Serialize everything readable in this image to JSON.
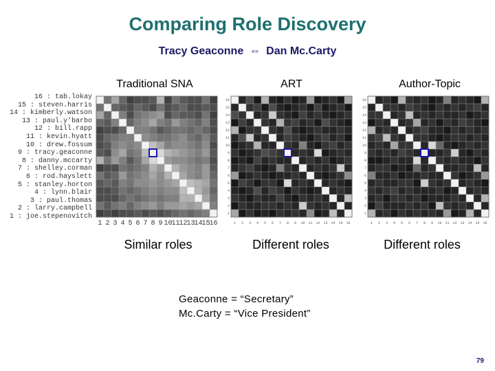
{
  "slide": {
    "title": "Comparing Role Discovery",
    "subtitle_left": "Tracy Geaconne",
    "subtitle_arrow": "⇔",
    "subtitle_right": "Dan Mc.Carty",
    "page_number": "79"
  },
  "panels": [
    {
      "label": "Traditional SNA",
      "caption": "Similar roles"
    },
    {
      "label": "ART",
      "caption": "Different roles"
    },
    {
      "label": "Author-Topic",
      "caption": "Different roles"
    }
  ],
  "names": [
    "16 : tab.lokay",
    "15 : steven.harris",
    "14 : kimberly.watson",
    "13 : paul.y'barbo",
    "12 : bill.rapp",
    "11 : kevin.hyatt",
    "10 : drew.fossum",
    "9 : tracy.geaconne",
    "8 : danny.mccarty",
    "7 : shelley.corman",
    "6 : rod.hayslett",
    "5 : stanley.horton",
    "4 : lynn.blair",
    "3 : paul.thomas",
    "2 : larry.campbell",
    "1 : joe.stepenovitch"
  ],
  "x_ticks": [
    "1",
    "2",
    "3",
    "4",
    "5",
    "6",
    "7",
    "8",
    "9",
    "10",
    "11",
    "12",
    "13",
    "14",
    "15",
    "16"
  ],
  "footnote": {
    "line1": "Geaconne = “Secretary”",
    "line2": "Mc.Carty = “Vice President”"
  },
  "colors": {
    "title": "#1f6f6f",
    "subtitle": "#1a1a66",
    "highlight_box": "#1a1aaa"
  },
  "matrices": {
    "sna": [
      [
        0.05,
        0.55,
        0.35,
        0.6,
        0.75,
        0.7,
        0.7,
        0.65,
        0.3,
        0.75,
        0.55,
        0.65,
        0.7,
        0.7,
        0.55,
        0.75
      ],
      [
        0.55,
        0.05,
        0.6,
        0.65,
        0.7,
        0.6,
        0.65,
        0.7,
        0.55,
        0.7,
        0.65,
        0.6,
        0.7,
        0.7,
        0.65,
        0.7
      ],
      [
        0.35,
        0.6,
        0.05,
        0.5,
        0.7,
        0.55,
        0.5,
        0.45,
        0.4,
        0.7,
        0.6,
        0.65,
        0.65,
        0.7,
        0.55,
        0.75
      ],
      [
        0.6,
        0.65,
        0.5,
        0.05,
        0.6,
        0.5,
        0.45,
        0.35,
        0.5,
        0.55,
        0.4,
        0.5,
        0.55,
        0.6,
        0.5,
        0.7
      ],
      [
        0.75,
        0.7,
        0.7,
        0.6,
        0.05,
        0.5,
        0.5,
        0.55,
        0.65,
        0.6,
        0.55,
        0.55,
        0.6,
        0.55,
        0.6,
        0.7
      ],
      [
        0.7,
        0.6,
        0.55,
        0.5,
        0.5,
        0.05,
        0.45,
        0.5,
        0.55,
        0.55,
        0.5,
        0.45,
        0.55,
        0.6,
        0.5,
        0.65
      ],
      [
        0.7,
        0.65,
        0.5,
        0.45,
        0.5,
        0.45,
        0.05,
        0.25,
        0.35,
        0.5,
        0.45,
        0.45,
        0.5,
        0.55,
        0.45,
        0.7
      ],
      [
        0.65,
        0.7,
        0.45,
        0.35,
        0.55,
        0.5,
        0.25,
        0.05,
        0.15,
        0.3,
        0.35,
        0.4,
        0.45,
        0.5,
        0.4,
        0.65
      ],
      [
        0.3,
        0.55,
        0.4,
        0.5,
        0.65,
        0.55,
        0.35,
        0.15,
        0.05,
        0.4,
        0.45,
        0.45,
        0.5,
        0.55,
        0.5,
        0.7
      ],
      [
        0.75,
        0.7,
        0.7,
        0.55,
        0.6,
        0.55,
        0.5,
        0.3,
        0.4,
        0.05,
        0.3,
        0.4,
        0.45,
        0.5,
        0.4,
        0.65
      ],
      [
        0.55,
        0.65,
        0.6,
        0.4,
        0.55,
        0.5,
        0.45,
        0.35,
        0.45,
        0.3,
        0.05,
        0.35,
        0.45,
        0.5,
        0.4,
        0.6
      ],
      [
        0.65,
        0.6,
        0.65,
        0.5,
        0.55,
        0.45,
        0.45,
        0.4,
        0.45,
        0.4,
        0.35,
        0.05,
        0.25,
        0.3,
        0.35,
        0.55
      ],
      [
        0.7,
        0.7,
        0.65,
        0.55,
        0.6,
        0.55,
        0.5,
        0.45,
        0.5,
        0.45,
        0.45,
        0.25,
        0.05,
        0.3,
        0.4,
        0.6
      ],
      [
        0.7,
        0.7,
        0.7,
        0.6,
        0.55,
        0.6,
        0.55,
        0.5,
        0.55,
        0.5,
        0.5,
        0.3,
        0.3,
        0.05,
        0.35,
        0.55
      ],
      [
        0.55,
        0.65,
        0.55,
        0.5,
        0.6,
        0.5,
        0.45,
        0.4,
        0.5,
        0.4,
        0.4,
        0.35,
        0.4,
        0.35,
        0.05,
        0.5
      ],
      [
        0.75,
        0.7,
        0.75,
        0.7,
        0.7,
        0.65,
        0.7,
        0.65,
        0.7,
        0.65,
        0.6,
        0.55,
        0.6,
        0.55,
        0.5,
        0.05
      ]
    ],
    "art": [
      [
        0.05,
        0.85,
        0.7,
        0.9,
        0.3,
        0.85,
        0.9,
        0.8,
        0.9,
        0.85,
        0.4,
        0.9,
        0.85,
        0.8,
        0.9,
        0.35
      ],
      [
        0.85,
        0.05,
        0.8,
        0.75,
        0.9,
        0.7,
        0.85,
        0.9,
        0.85,
        0.8,
        0.9,
        0.75,
        0.9,
        0.85,
        0.8,
        0.9
      ],
      [
        0.7,
        0.8,
        0.05,
        0.85,
        0.8,
        0.2,
        0.8,
        0.85,
        0.9,
        0.75,
        0.85,
        0.8,
        0.85,
        0.9,
        0.85,
        0.8
      ],
      [
        0.9,
        0.75,
        0.85,
        0.05,
        0.8,
        0.85,
        0.3,
        0.8,
        0.75,
        0.85,
        0.8,
        0.9,
        0.7,
        0.8,
        0.85,
        0.9
      ],
      [
        0.3,
        0.9,
        0.8,
        0.8,
        0.05,
        0.8,
        0.85,
        0.7,
        0.85,
        0.9,
        0.85,
        0.8,
        0.85,
        0.85,
        0.8,
        0.85
      ],
      [
        0.85,
        0.7,
        0.2,
        0.85,
        0.8,
        0.05,
        0.85,
        0.75,
        0.8,
        0.85,
        0.9,
        0.8,
        0.75,
        0.85,
        0.8,
        0.9
      ],
      [
        0.9,
        0.85,
        0.8,
        0.3,
        0.85,
        0.85,
        0.05,
        0.8,
        0.85,
        0.5,
        0.85,
        0.9,
        0.8,
        0.75,
        0.85,
        0.8
      ],
      [
        0.8,
        0.9,
        0.85,
        0.8,
        0.7,
        0.75,
        0.8,
        0.05,
        0.85,
        0.8,
        0.85,
        0.15,
        0.9,
        0.85,
        0.8,
        0.85
      ],
      [
        0.9,
        0.85,
        0.9,
        0.75,
        0.85,
        0.8,
        0.85,
        0.85,
        0.05,
        0.85,
        0.8,
        0.85,
        0.8,
        0.9,
        0.85,
        0.8
      ],
      [
        0.85,
        0.8,
        0.75,
        0.85,
        0.9,
        0.85,
        0.5,
        0.8,
        0.85,
        0.05,
        0.85,
        0.8,
        0.85,
        0.8,
        0.2,
        0.85
      ],
      [
        0.4,
        0.9,
        0.85,
        0.8,
        0.85,
        0.9,
        0.85,
        0.85,
        0.8,
        0.85,
        0.05,
        0.85,
        0.9,
        0.85,
        0.8,
        0.45
      ],
      [
        0.9,
        0.75,
        0.8,
        0.9,
        0.8,
        0.8,
        0.9,
        0.15,
        0.85,
        0.8,
        0.85,
        0.05,
        0.85,
        0.8,
        0.85,
        0.9
      ],
      [
        0.85,
        0.9,
        0.85,
        0.7,
        0.85,
        0.75,
        0.8,
        0.9,
        0.8,
        0.85,
        0.9,
        0.85,
        0.05,
        0.85,
        0.8,
        0.85
      ],
      [
        0.8,
        0.85,
        0.9,
        0.8,
        0.85,
        0.85,
        0.75,
        0.85,
        0.9,
        0.8,
        0.85,
        0.8,
        0.85,
        0.05,
        0.85,
        0.25
      ],
      [
        0.9,
        0.8,
        0.85,
        0.85,
        0.8,
        0.8,
        0.85,
        0.8,
        0.85,
        0.2,
        0.8,
        0.85,
        0.8,
        0.85,
        0.05,
        0.85
      ],
      [
        0.35,
        0.9,
        0.8,
        0.9,
        0.85,
        0.9,
        0.8,
        0.85,
        0.8,
        0.85,
        0.45,
        0.9,
        0.85,
        0.25,
        0.85,
        0.05
      ]
    ],
    "author_topic": [
      [
        0.05,
        0.85,
        0.8,
        0.9,
        0.3,
        0.8,
        0.85,
        0.8,
        0.9,
        0.85,
        0.5,
        0.85,
        0.8,
        0.85,
        0.9,
        0.3
      ],
      [
        0.85,
        0.05,
        0.8,
        0.8,
        0.85,
        0.75,
        0.8,
        0.85,
        0.9,
        0.8,
        0.85,
        0.8,
        0.85,
        0.8,
        0.75,
        0.85
      ],
      [
        0.8,
        0.8,
        0.05,
        0.85,
        0.8,
        0.25,
        0.85,
        0.8,
        0.85,
        0.8,
        0.85,
        0.85,
        0.8,
        0.9,
        0.85,
        0.8
      ],
      [
        0.9,
        0.8,
        0.85,
        0.05,
        0.85,
        0.8,
        0.35,
        0.85,
        0.8,
        0.9,
        0.8,
        0.85,
        0.75,
        0.8,
        0.85,
        0.9
      ],
      [
        0.3,
        0.85,
        0.8,
        0.85,
        0.05,
        0.85,
        0.8,
        0.75,
        0.85,
        0.85,
        0.9,
        0.8,
        0.85,
        0.8,
        0.85,
        0.8
      ],
      [
        0.8,
        0.75,
        0.25,
        0.8,
        0.85,
        0.05,
        0.8,
        0.8,
        0.85,
        0.9,
        0.85,
        0.8,
        0.8,
        0.85,
        0.8,
        0.85
      ],
      [
        0.85,
        0.8,
        0.85,
        0.35,
        0.8,
        0.8,
        0.05,
        0.85,
        0.15,
        0.6,
        0.85,
        0.9,
        0.85,
        0.8,
        0.85,
        0.8
      ],
      [
        0.8,
        0.85,
        0.8,
        0.85,
        0.75,
        0.8,
        0.85,
        0.05,
        0.85,
        0.85,
        0.8,
        0.2,
        0.85,
        0.9,
        0.8,
        0.85
      ],
      [
        0.9,
        0.9,
        0.85,
        0.8,
        0.85,
        0.85,
        0.15,
        0.85,
        0.05,
        0.8,
        0.85,
        0.8,
        0.85,
        0.85,
        0.9,
        0.8
      ],
      [
        0.85,
        0.8,
        0.8,
        0.9,
        0.85,
        0.9,
        0.6,
        0.85,
        0.8,
        0.05,
        0.85,
        0.85,
        0.8,
        0.85,
        0.25,
        0.85
      ],
      [
        0.5,
        0.85,
        0.85,
        0.8,
        0.9,
        0.85,
        0.85,
        0.8,
        0.85,
        0.85,
        0.05,
        0.8,
        0.9,
        0.85,
        0.8,
        0.4
      ],
      [
        0.85,
        0.8,
        0.85,
        0.85,
        0.8,
        0.8,
        0.9,
        0.2,
        0.8,
        0.85,
        0.8,
        0.05,
        0.85,
        0.8,
        0.85,
        0.9
      ],
      [
        0.8,
        0.85,
        0.8,
        0.75,
        0.85,
        0.8,
        0.85,
        0.85,
        0.85,
        0.8,
        0.9,
        0.85,
        0.05,
        0.85,
        0.8,
        0.85
      ],
      [
        0.85,
        0.8,
        0.9,
        0.8,
        0.8,
        0.85,
        0.8,
        0.9,
        0.85,
        0.85,
        0.85,
        0.8,
        0.85,
        0.05,
        0.85,
        0.3
      ],
      [
        0.9,
        0.75,
        0.85,
        0.85,
        0.85,
        0.8,
        0.85,
        0.8,
        0.9,
        0.25,
        0.8,
        0.85,
        0.8,
        0.85,
        0.05,
        0.85
      ],
      [
        0.3,
        0.85,
        0.8,
        0.9,
        0.8,
        0.85,
        0.8,
        0.85,
        0.8,
        0.85,
        0.4,
        0.9,
        0.85,
        0.3,
        0.85,
        0.05
      ]
    ]
  }
}
